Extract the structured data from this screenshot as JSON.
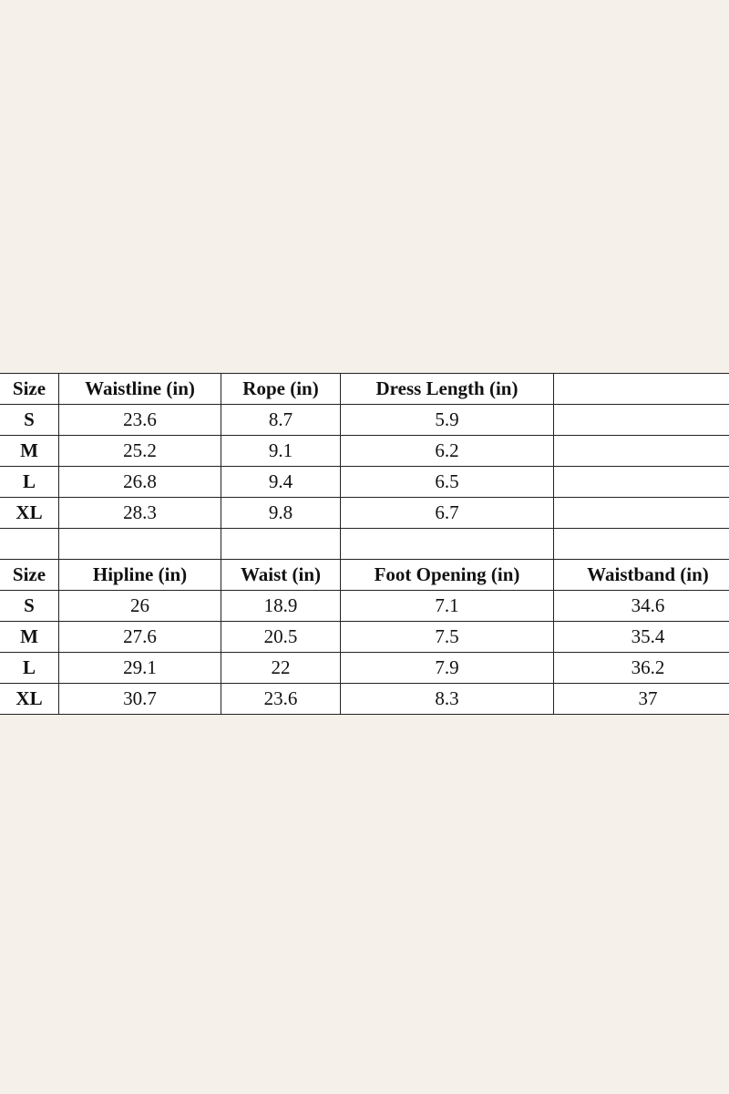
{
  "tables": [
    {
      "headers": [
        "Size",
        "Waistline (in)",
        "Rope (in)",
        "Dress Length (in)",
        ""
      ],
      "rows": [
        [
          "S",
          "23.6",
          "8.7",
          "5.9",
          ""
        ],
        [
          "M",
          "25.2",
          "9.1",
          "6.2",
          ""
        ],
        [
          "L",
          "26.8",
          "9.4",
          "6.5",
          ""
        ],
        [
          "XL",
          "28.3",
          "9.8",
          "6.7",
          ""
        ]
      ]
    },
    {
      "headers": [
        "Size",
        "Hipline (in)",
        "Waist (in)",
        "Foot Opening (in)",
        "Waistband (in)"
      ],
      "rows": [
        [
          "S",
          "26",
          "18.9",
          "7.1",
          "34.6"
        ],
        [
          "M",
          "27.6",
          "20.5",
          "7.5",
          "35.4"
        ],
        [
          "L",
          "29.1",
          "22",
          "7.9",
          "36.2"
        ],
        [
          "XL",
          "30.7",
          "23.6",
          "8.3",
          "37"
        ]
      ]
    }
  ]
}
